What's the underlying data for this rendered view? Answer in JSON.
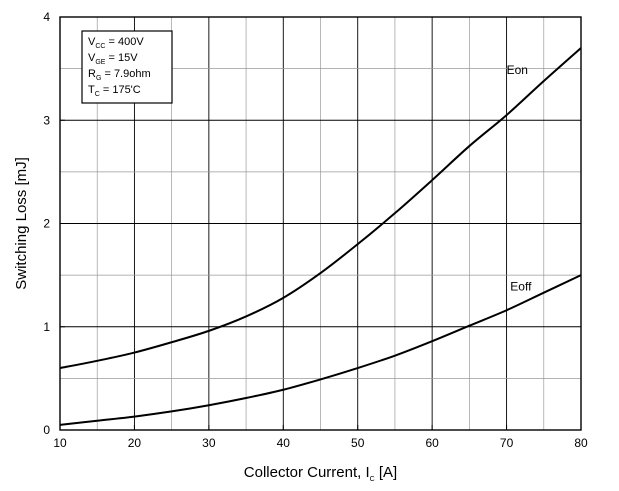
{
  "chart_data": {
    "type": "line",
    "title": "",
    "xlabel": {
      "main": "Collector Current, I",
      "sub": "C",
      "unit": " [A]"
    },
    "ylabel": "Switching Loss [mJ]",
    "xlim": [
      10,
      80
    ],
    "ylim": [
      0,
      4
    ],
    "xticks": [
      10,
      20,
      30,
      40,
      50,
      60,
      70,
      80
    ],
    "yticks": [
      0,
      1,
      2,
      3,
      4
    ],
    "x_minor_step": 5,
    "y_minor_step": 0.5,
    "grid": true,
    "legend_position": "top-left",
    "conditions": [
      {
        "main": "V",
        "sub": "CC",
        "rest": " = 400V"
      },
      {
        "main": "V",
        "sub": "GE",
        "rest": " = 15V"
      },
      {
        "main": "R",
        "sub": "G",
        "rest": " = 7.9ohm"
      },
      {
        "main": "T",
        "sub": "C",
        "rest": " = 175'C"
      }
    ],
    "series": [
      {
        "name": "Eon",
        "label_at": [
          70,
          3.45
        ],
        "x": [
          10,
          15,
          20,
          25,
          30,
          35,
          40,
          45,
          50,
          55,
          60,
          65,
          70,
          75,
          80
        ],
        "y": [
          0.6,
          0.67,
          0.75,
          0.85,
          0.96,
          1.1,
          1.28,
          1.52,
          1.8,
          2.1,
          2.42,
          2.75,
          3.05,
          3.38,
          3.7
        ]
      },
      {
        "name": "Eoff",
        "label_at": [
          70.5,
          1.35
        ],
        "x": [
          10,
          15,
          20,
          25,
          30,
          35,
          40,
          45,
          50,
          55,
          60,
          65,
          70,
          75,
          80
        ],
        "y": [
          0.05,
          0.09,
          0.13,
          0.18,
          0.24,
          0.31,
          0.39,
          0.49,
          0.6,
          0.72,
          0.86,
          1.01,
          1.16,
          1.33,
          1.5
        ]
      }
    ]
  }
}
